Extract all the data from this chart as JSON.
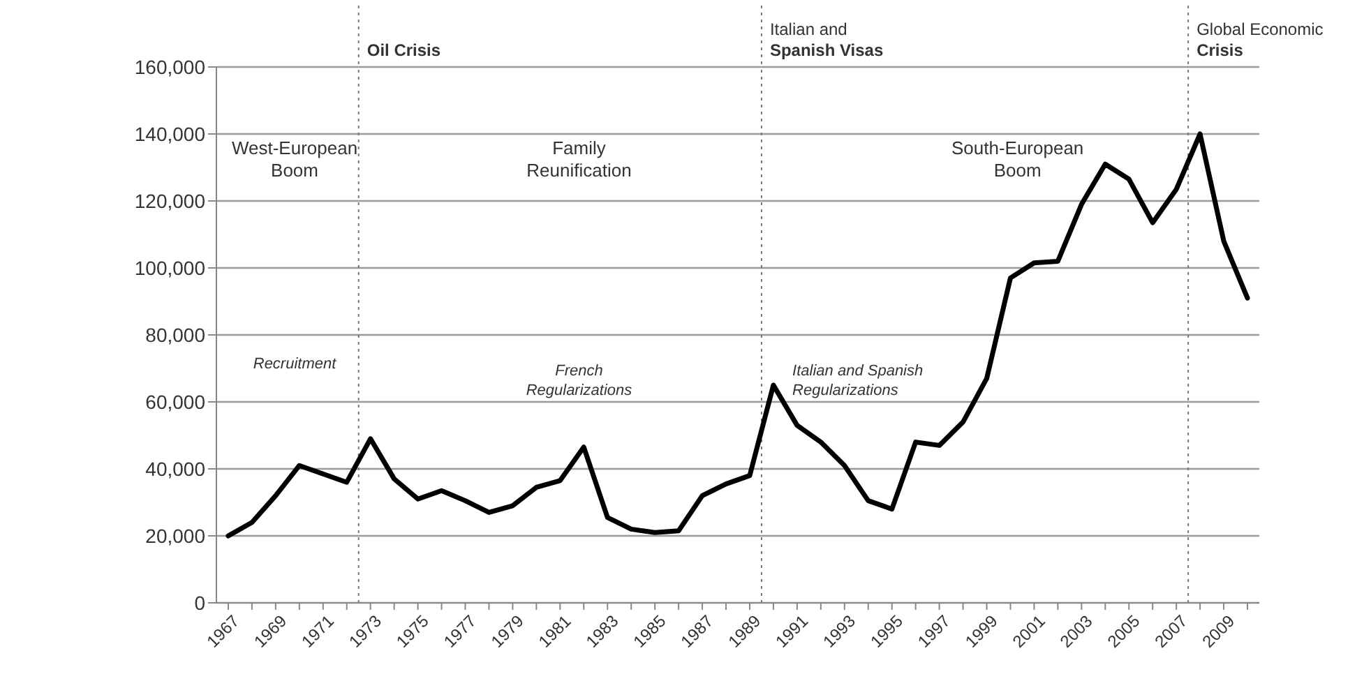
{
  "chart_data": {
    "type": "line",
    "x": [
      1967,
      1968,
      1969,
      1970,
      1971,
      1972,
      1973,
      1974,
      1975,
      1976,
      1977,
      1978,
      1979,
      1980,
      1981,
      1982,
      1983,
      1984,
      1985,
      1986,
      1987,
      1988,
      1989,
      1990,
      1991,
      1992,
      1993,
      1994,
      1995,
      1996,
      1997,
      1998,
      1999,
      2000,
      2001,
      2002,
      2003,
      2004,
      2005,
      2006,
      2007,
      2008,
      2009,
      2010
    ],
    "series": [
      {
        "color": "#000000",
        "values": [
          20000,
          24000,
          32000,
          41000,
          38500,
          36000,
          49000,
          37000,
          31000,
          33500,
          30500,
          27000,
          29000,
          34500,
          36500,
          46500,
          25500,
          22000,
          21000,
          21500,
          32000,
          35500,
          38000,
          65000,
          53000,
          48000,
          41000,
          30500,
          28000,
          48000,
          47000,
          54000,
          67000,
          97000,
          101500,
          102000,
          119000,
          131000,
          126500,
          113500,
          123500,
          140000,
          108000,
          91000
        ]
      }
    ],
    "xlim": [
      1966.5,
      2010.5
    ],
    "xticks": [
      1967,
      {
        "value": 1968,
        "label": null
      },
      1969,
      {
        "value": 1970,
        "label": null
      },
      1971,
      {
        "value": 1972,
        "label": null
      },
      1973,
      {
        "value": 1974,
        "label": null
      },
      1975,
      {
        "value": 1976,
        "label": null
      },
      1977,
      {
        "value": 1978,
        "label": null
      },
      1979,
      {
        "value": 1980,
        "label": null
      },
      1981,
      {
        "value": 1982,
        "label": null
      },
      1983,
      {
        "value": 1984,
        "label": null
      },
      1985,
      {
        "value": 1986,
        "label": null
      },
      1987,
      {
        "value": 1988,
        "label": null
      },
      1989,
      {
        "value": 1990,
        "label": null
      },
      1991,
      {
        "value": 1992,
        "label": null
      },
      1993,
      {
        "value": 1994,
        "label": null
      },
      1995,
      {
        "value": 1996,
        "label": null
      },
      1997,
      {
        "value": 1998,
        "label": null
      },
      1999,
      {
        "value": 2000,
        "label": null
      },
      2001,
      {
        "value": 2002,
        "label": null
      },
      2003,
      {
        "value": 2004,
        "label": null
      },
      2005,
      {
        "value": 2006,
        "label": null
      },
      2007,
      {
        "value": 2008,
        "label": null
      },
      2009,
      {
        "value": 2010,
        "label": null
      }
    ],
    "ylim": [
      0,
      160000
    ],
    "yticks": [
      {
        "value": 0,
        "label": "0"
      },
      {
        "value": 20000,
        "label": "20,000"
      },
      {
        "value": 40000,
        "label": "40,000"
      },
      {
        "value": 60000,
        "label": "60,000"
      },
      {
        "value": 80000,
        "label": "80,000"
      },
      {
        "value": 100000,
        "label": "100,000"
      },
      {
        "value": 120000,
        "label": "120,000"
      },
      {
        "value": 140000,
        "label": "140,000"
      },
      {
        "value": 160000,
        "label": "160,000"
      }
    ],
    "grid": "y",
    "marker": "none",
    "line_style": "solid",
    "ref_lines": [
      {
        "axis": "x",
        "value": 1972.5,
        "label": "Oil Crisis",
        "line_style": "dotted",
        "color": "#777777"
      },
      {
        "axis": "x",
        "value": 1989.5,
        "label": "Italian and Spanish Visas",
        "line_style": "dotted",
        "color": "#777777"
      },
      {
        "axis": "x",
        "value": 2007.5,
        "label": "Global Economic Crisis",
        "line_style": "dotted",
        "color": "#777777"
      }
    ],
    "annotations": [
      "West-European Boom",
      "Recruitment",
      "Family Reunification",
      "French Regularizations",
      "Italian and Spanish Regularizations",
      "South-European Boom"
    ]
  }
}
